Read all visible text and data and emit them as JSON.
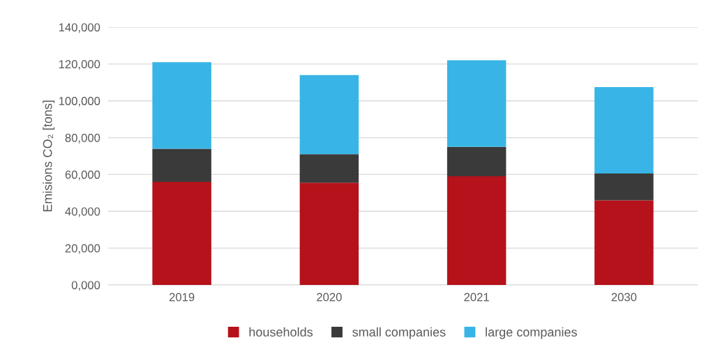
{
  "chart_data": {
    "type": "bar",
    "stacked": true,
    "ylabel": "Emisions CO₂ [tons]",
    "categories": [
      "2019",
      "2020",
      "2021",
      "2030"
    ],
    "series": [
      {
        "name": "households",
        "color": "#b5121b",
        "values": [
          56000,
          55500,
          59000,
          46000
        ]
      },
      {
        "name": "small companies",
        "color": "#3a3a3a",
        "values": [
          18000,
          15500,
          16000,
          14500
        ]
      },
      {
        "name": "large companies",
        "color": "#38b5e6",
        "values": [
          47000,
          43000,
          47000,
          47000
        ]
      }
    ],
    "ylim": [
      0,
      140000
    ],
    "yticks": [
      {
        "value": 0,
        "label": "0,000"
      },
      {
        "value": 20000,
        "label": "20,000"
      },
      {
        "value": 40000,
        "label": "40,000"
      },
      {
        "value": 60000,
        "label": "60,000"
      },
      {
        "value": 80000,
        "label": "80,000"
      },
      {
        "value": 100000,
        "label": "100,000"
      },
      {
        "value": 120000,
        "label": "120,000"
      },
      {
        "value": 140000,
        "label": "140,000"
      }
    ],
    "grid": "y",
    "legend": "bottom"
  }
}
